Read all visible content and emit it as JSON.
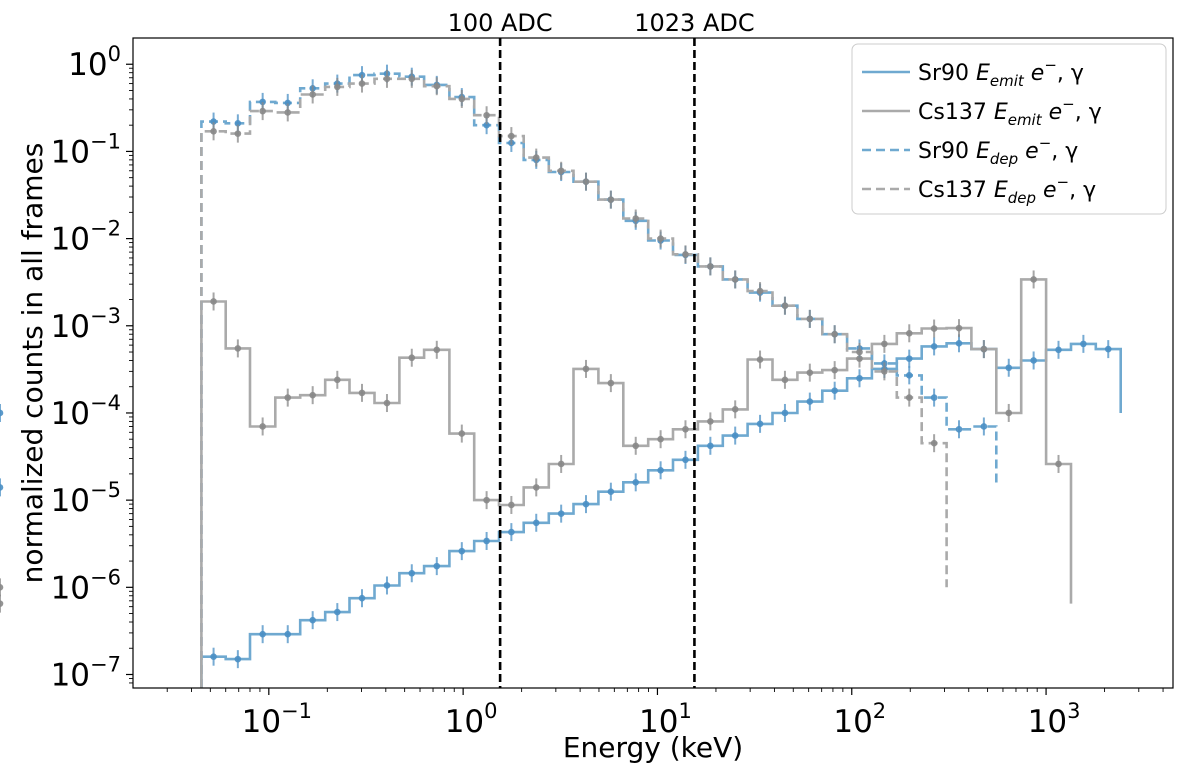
{
  "chart_data": {
    "type": "line",
    "xlabel": "Energy (keV)",
    "ylabel": "normalized counts in all frames",
    "xscale": "log",
    "yscale": "log",
    "xlim": [
      0.02,
      4500
    ],
    "ylim": [
      7e-08,
      2
    ],
    "x_ticks": [
      {
        "base": "10",
        "exp": "−1",
        "value": 0.1
      },
      {
        "base": "10",
        "exp": "0",
        "value": 1
      },
      {
        "base": "10",
        "exp": "1",
        "value": 10
      },
      {
        "base": "10",
        "exp": "2",
        "value": 100
      },
      {
        "base": "10",
        "exp": "3",
        "value": 1000
      }
    ],
    "y_ticks": [
      {
        "base": "10",
        "exp": "−7",
        "value": 1e-07
      },
      {
        "base": "10",
        "exp": "−6",
        "value": 1e-06
      },
      {
        "base": "10",
        "exp": "−5",
        "value": 1e-05
      },
      {
        "base": "10",
        "exp": "−4",
        "value": 0.0001
      },
      {
        "base": "10",
        "exp": "−3",
        "value": 0.001
      },
      {
        "base": "10",
        "exp": "−2",
        "value": 0.01
      },
      {
        "base": "10",
        "exp": "−1",
        "value": 0.1
      },
      {
        "base": "10",
        "exp": "0",
        "value": 1
      }
    ],
    "vlines": [
      {
        "x": 1.55,
        "label": "100 ADC"
      },
      {
        "x": 15.5,
        "label": "1023 ADC"
      }
    ],
    "legend_position": "top-right",
    "series": [
      {
        "name": "Sr90 E_emit e⁻, γ",
        "legend": {
          "prefix": "Sr90 ",
          "main": "E",
          "sub": "emit",
          "suffix1": " e",
          "sup": "−",
          "suffix2": ", γ"
        },
        "color": "#6fa9d0",
        "dash": "solid",
        "marker_color": "#4a8fc4",
        "edges": [
          0.045,
          0.06,
          0.08,
          0.108,
          0.145,
          0.195,
          0.26,
          0.35,
          0.47,
          0.63,
          0.85,
          1.14,
          1.53,
          2.05,
          2.76,
          3.7,
          4.97,
          6.67,
          8.96,
          12.03,
          16.15,
          21.7,
          29.1,
          39.1,
          52.5,
          70.5,
          94.6,
          127,
          170.6,
          229,
          307.5,
          412.9,
          554.5,
          744.6,
          1000,
          1343,
          1803,
          2421
        ],
        "values": [
          1.6e-07,
          1.5e-07,
          2.9e-07,
          2.9e-07,
          4.2e-07,
          5.2e-07,
          7.5e-07,
          1.05e-06,
          1.45e-06,
          1.75e-06,
          2.6e-06,
          3.4e-06,
          4.3e-06,
          5.5e-06,
          7e-06,
          9e-06,
          1.25e-05,
          1.6e-05,
          2.2e-05,
          2.9e-05,
          4.2e-05,
          5.5e-05,
          7.5e-05,
          0.0001,
          0.000135,
          0.00018,
          0.00025,
          0.00032,
          0.00042,
          0.00058,
          0.00063,
          0.00054,
          0.00033,
          0.0004,
          0.00053,
          0.00062,
          0.00054,
          0.0001
        ]
      },
      {
        "name": "Cs137 E_emit e⁻, γ",
        "legend": {
          "prefix": "Cs137 ",
          "main": "E",
          "sub": "emit",
          "suffix1": " e",
          "sup": "−",
          "suffix2": ", γ"
        },
        "color": "#aaaaaa",
        "dash": "solid",
        "marker_color": "#888888",
        "edges": [
          0.045,
          0.06,
          0.08,
          0.108,
          0.145,
          0.195,
          0.26,
          0.35,
          0.47,
          0.63,
          0.85,
          1.14,
          1.53,
          2.05,
          2.76,
          3.7,
          4.97,
          6.67,
          8.96,
          12.03,
          16.15,
          21.7,
          29.1,
          39.1,
          52.5,
          70.5,
          94.6,
          127,
          170.6,
          229,
          307.5,
          412.9,
          554.5,
          744.6,
          1000,
          1343
        ],
        "values": [
          0.0019,
          0.00055,
          7e-05,
          0.00015,
          0.00016,
          0.00024,
          0.00017,
          0.00013,
          0.00043,
          0.00053,
          5.8e-05,
          1e-05,
          8.8e-06,
          1.4e-05,
          2.6e-05,
          0.00032,
          0.00022,
          4.2e-05,
          5e-05,
          6.5e-05,
          8e-05,
          0.00011,
          0.00041,
          0.00024,
          0.00029,
          0.00031,
          0.00042,
          0.00062,
          0.00082,
          0.00093,
          0.00094,
          0.00054,
          0.0001,
          0.0034,
          2.6e-05,
          6.5e-07
        ]
      },
      {
        "name": "Sr90 E_dep e⁻, γ",
        "legend": {
          "prefix": "Sr90 ",
          "main": "E",
          "sub": "dep",
          "suffix1": " e",
          "sup": "−",
          "suffix2": ", γ"
        },
        "color": "#6fa9d0",
        "dash": "dashed",
        "marker_color": "#4a8fc4",
        "edges": [
          0.045,
          0.06,
          0.08,
          0.108,
          0.145,
          0.195,
          0.26,
          0.35,
          0.47,
          0.63,
          0.85,
          1.14,
          1.53,
          2.05,
          2.76,
          3.7,
          4.97,
          6.67,
          8.96,
          12.03,
          16.15,
          21.7,
          29.1,
          39.1,
          52.5,
          70.5,
          94.6,
          127,
          170.6,
          229,
          307.5,
          412.9,
          554.5
        ],
        "values": [
          0.22,
          0.21,
          0.37,
          0.36,
          0.53,
          0.6,
          0.75,
          0.78,
          0.72,
          0.58,
          0.42,
          0.2,
          0.125,
          0.08,
          0.058,
          0.045,
          0.028,
          0.016,
          0.0095,
          0.0065,
          0.0048,
          0.0034,
          0.0024,
          0.0017,
          0.0012,
          0.0008,
          0.00055,
          0.00037,
          0.00027,
          0.00015,
          6.5e-05,
          7e-05,
          1.4e-05
        ]
      },
      {
        "name": "Cs137 E_dep e⁻, γ",
        "legend": {
          "prefix": "Cs137 ",
          "main": "E",
          "sub": "dep",
          "suffix1": " e",
          "sup": "−",
          "suffix2": ", γ"
        },
        "color": "#aaaaaa",
        "dash": "dashed",
        "marker_color": "#888888",
        "edges": [
          0.045,
          0.06,
          0.08,
          0.108,
          0.145,
          0.195,
          0.26,
          0.35,
          0.47,
          0.63,
          0.85,
          1.14,
          1.53,
          2.05,
          2.76,
          3.7,
          4.97,
          6.67,
          8.96,
          12.03,
          16.15,
          21.7,
          29.1,
          39.1,
          52.5,
          70.5,
          94.6,
          127,
          170.6,
          229,
          307.5
        ],
        "values": [
          0.17,
          0.16,
          0.29,
          0.28,
          0.45,
          0.55,
          0.6,
          0.68,
          0.68,
          0.56,
          0.4,
          0.26,
          0.15,
          0.085,
          0.06,
          0.045,
          0.028,
          0.017,
          0.01,
          0.0066,
          0.0048,
          0.0034,
          0.0025,
          0.0017,
          0.0012,
          0.0008,
          0.0005,
          0.0003,
          0.00015,
          4.5e-05,
          1e-06
        ]
      }
    ]
  }
}
